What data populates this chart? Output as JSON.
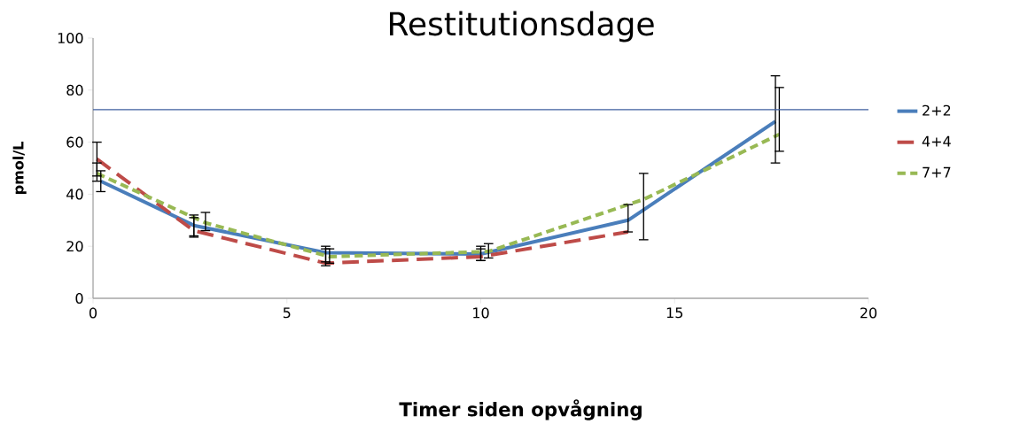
{
  "chart_data": {
    "type": "line",
    "title": "Restitutionsdage",
    "xlabel": "Timer siden opvågning",
    "ylabel": "pmol/L",
    "xlim": [
      0,
      20
    ],
    "ylim": [
      0,
      100
    ],
    "xticks": [
      0,
      5,
      10,
      15,
      20
    ],
    "yticks": [
      0,
      20,
      40,
      60,
      80,
      100
    ],
    "legend": "right",
    "ref_lines": [
      {
        "axis": "y",
        "value": 72.5,
        "color": "#3f5f9f"
      }
    ],
    "series": [
      {
        "name": "2+2",
        "color": "#4a7ebb",
        "line_style": "solid",
        "x": [
          0.2,
          2.6,
          6.0,
          10.0,
          13.8,
          17.6
        ],
        "values": [
          45,
          28,
          17.5,
          17,
          30,
          68
        ],
        "errors": [
          [
            41,
            49
          ],
          [
            24,
            32
          ],
          [
            14,
            20
          ],
          [
            14.5,
            20
          ],
          [
            25.5,
            36
          ],
          [
            52,
            85.5
          ]
        ]
      },
      {
        "name": "4+4",
        "color": "#be4b48",
        "line_style": "dashed",
        "x": [
          0.1,
          2.6,
          6.0,
          10.0,
          13.8
        ],
        "values": [
          53.5,
          26,
          13.5,
          16,
          25.5
        ],
        "errors": [
          [
            47,
            60
          ],
          [
            23.5,
            31
          ],
          [
            12.5,
            19
          ],
          [
            14.5,
            19
          ],
          null
        ]
      },
      {
        "name": "7+7",
        "color": "#98b954",
        "line_style": "dotted",
        "x": [
          0.1,
          2.9,
          6.1,
          10.2,
          14.2,
          17.7
        ],
        "values": [
          48,
          29,
          16,
          18,
          38,
          63
        ],
        "errors": [
          [
            45,
            52
          ],
          [
            26,
            33
          ],
          [
            13.5,
            19
          ],
          [
            15.5,
            21
          ],
          [
            22.5,
            48
          ],
          [
            56.5,
            81
          ]
        ]
      }
    ]
  }
}
